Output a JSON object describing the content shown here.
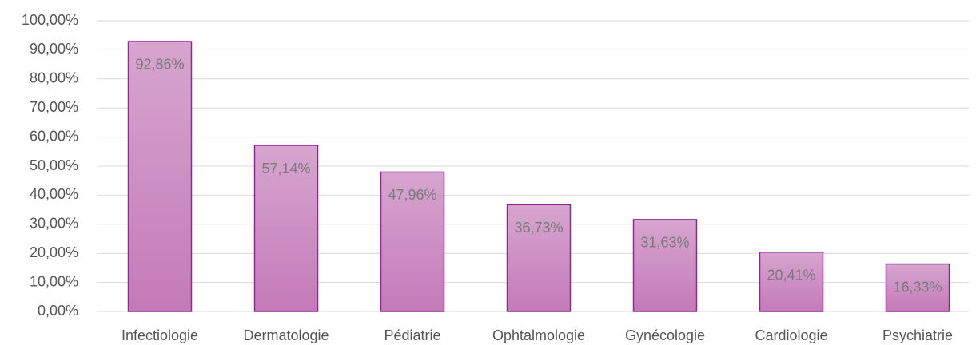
{
  "chart_data": {
    "type": "bar",
    "categories": [
      "Infectiologie",
      "Dermatologie",
      "Pédiatrie",
      "Ophtalmologie",
      "Gynécologie",
      "Cardiologie",
      "Psychiatrie"
    ],
    "values": [
      92.86,
      57.14,
      47.96,
      36.73,
      31.63,
      20.41,
      16.33
    ],
    "value_labels": [
      "92,86%",
      "57,14%",
      "47,96%",
      "36,73%",
      "31,63%",
      "20,41%",
      "16,33%"
    ],
    "color": "#c98bbf",
    "ylim": [
      0,
      100
    ],
    "yticks": [
      {
        "value": 0,
        "label": "0,00%"
      },
      {
        "value": 10,
        "label": "10,00%"
      },
      {
        "value": 20,
        "label": "20,00%"
      },
      {
        "value": 30,
        "label": "30,00%"
      },
      {
        "value": 40,
        "label": "40,00%"
      },
      {
        "value": 50,
        "label": "50,00%"
      },
      {
        "value": 60,
        "label": "60,00%"
      },
      {
        "value": 70,
        "label": "70,00%"
      },
      {
        "value": 80,
        "label": "80,00%"
      },
      {
        "value": 90,
        "label": "90,00%"
      },
      {
        "value": 100,
        "label": "100,00%"
      }
    ],
    "grid": true
  }
}
